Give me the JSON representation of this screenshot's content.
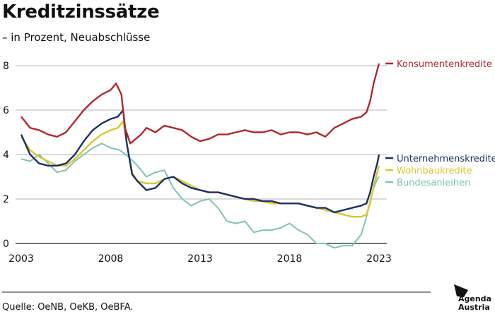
{
  "header": {
    "title": "Kreditzinssätze",
    "subtitle": "– in Prozent, Neuabschlüsse"
  },
  "footer": {
    "source": "Quelle: OeNB, OeKB, OeBFA.",
    "brand_line1": "Agenda",
    "brand_line2": "Austria"
  },
  "chart_data": {
    "type": "line",
    "title": "Kreditzinssätze",
    "subtitle": "– in Prozent, Neuabschlüsse",
    "xlabel": "",
    "ylabel": "",
    "xlim": [
      2003,
      2023.3
    ],
    "ylim": [
      0,
      8.6
    ],
    "x_ticks": [
      2003,
      2008,
      2013,
      2018,
      2023
    ],
    "y_ticks": [
      0,
      2,
      4,
      6,
      8
    ],
    "grid": "horizontal",
    "legend": "right (end-of-line labels)",
    "series": [
      {
        "name": "Konsumentenkredite",
        "color": "#b0282e",
        "x": [
          2003.0,
          2003.5,
          2004.0,
          2004.5,
          2005.0,
          2005.5,
          2006.0,
          2006.5,
          2007.0,
          2007.5,
          2008.0,
          2008.3,
          2008.6,
          2008.8,
          2009.1,
          2009.4,
          2009.7,
          2010.0,
          2010.5,
          2011.0,
          2011.5,
          2012.0,
          2012.5,
          2013.0,
          2013.5,
          2014.0,
          2014.5,
          2015.0,
          2015.5,
          2016.0,
          2016.5,
          2017.0,
          2017.5,
          2018.0,
          2018.5,
          2019.0,
          2019.5,
          2020.0,
          2020.5,
          2021.0,
          2021.5,
          2022.0,
          2022.3,
          2022.5,
          2022.7,
          2022.9,
          2023.0
        ],
        "values": [
          5.7,
          5.2,
          5.1,
          4.9,
          4.8,
          5.0,
          5.5,
          6.0,
          6.4,
          6.7,
          6.9,
          7.2,
          6.7,
          5.2,
          4.5,
          4.7,
          4.9,
          5.2,
          5.0,
          5.3,
          5.2,
          5.1,
          4.8,
          4.6,
          4.7,
          4.9,
          4.9,
          5.0,
          5.1,
          5.0,
          5.0,
          5.1,
          4.9,
          5.0,
          5.0,
          4.9,
          5.0,
          4.8,
          5.2,
          5.4,
          5.6,
          5.7,
          5.9,
          6.4,
          7.2,
          7.8,
          8.1
        ]
      },
      {
        "name": "Unternehmenskredite",
        "color": "#1c2e66",
        "x": [
          2003.0,
          2003.5,
          2004.0,
          2004.5,
          2005.0,
          2005.5,
          2006.0,
          2006.5,
          2007.0,
          2007.5,
          2008.0,
          2008.4,
          2008.7,
          2008.9,
          2009.2,
          2009.5,
          2010.0,
          2010.5,
          2011.0,
          2011.5,
          2012.0,
          2012.5,
          2013.0,
          2013.5,
          2014.0,
          2014.5,
          2015.0,
          2015.5,
          2016.0,
          2016.5,
          2017.0,
          2017.5,
          2018.0,
          2018.5,
          2019.0,
          2019.5,
          2020.0,
          2020.5,
          2021.0,
          2021.5,
          2022.0,
          2022.3,
          2022.5,
          2022.7,
          2022.9,
          2023.0
        ],
        "values": [
          4.9,
          4.0,
          3.6,
          3.5,
          3.5,
          3.6,
          4.0,
          4.6,
          5.1,
          5.4,
          5.6,
          5.7,
          6.0,
          4.5,
          3.1,
          2.8,
          2.4,
          2.5,
          2.9,
          3.0,
          2.7,
          2.5,
          2.4,
          2.3,
          2.3,
          2.2,
          2.1,
          2.0,
          2.0,
          1.9,
          1.9,
          1.8,
          1.8,
          1.8,
          1.7,
          1.6,
          1.6,
          1.4,
          1.5,
          1.6,
          1.7,
          1.8,
          2.3,
          3.0,
          3.6,
          4.0
        ]
      },
      {
        "name": "Wohnbaukredite",
        "color": "#d9c62e",
        "x": [
          2003.0,
          2003.5,
          2004.0,
          2004.5,
          2005.0,
          2005.5,
          2006.0,
          2006.5,
          2007.0,
          2007.5,
          2008.0,
          2008.4,
          2008.7,
          2008.9,
          2009.2,
          2009.5,
          2010.0,
          2010.5,
          2011.0,
          2011.5,
          2012.0,
          2012.5,
          2013.0,
          2013.5,
          2014.0,
          2014.5,
          2015.0,
          2015.5,
          2016.0,
          2016.5,
          2017.0,
          2017.5,
          2018.0,
          2018.5,
          2019.0,
          2019.5,
          2020.0,
          2020.5,
          2021.0,
          2021.5,
          2022.0,
          2022.3,
          2022.5,
          2022.7,
          2022.9,
          2023.0
        ],
        "values": [
          4.8,
          4.2,
          3.9,
          3.7,
          3.5,
          3.5,
          3.8,
          4.2,
          4.6,
          4.9,
          5.1,
          5.2,
          5.5,
          4.5,
          3.2,
          2.8,
          2.7,
          2.7,
          2.9,
          3.0,
          2.8,
          2.6,
          2.4,
          2.3,
          2.3,
          2.2,
          2.1,
          2.0,
          1.9,
          1.9,
          1.8,
          1.8,
          1.8,
          1.8,
          1.7,
          1.6,
          1.5,
          1.4,
          1.3,
          1.2,
          1.2,
          1.3,
          1.8,
          2.6,
          3.2,
          3.5
        ]
      },
      {
        "name": "Bundesanleihen",
        "color": "#7ec4ae",
        "x": [
          2003.0,
          2003.5,
          2004.0,
          2004.5,
          2005.0,
          2005.5,
          2006.0,
          2006.5,
          2007.0,
          2007.5,
          2008.0,
          2008.5,
          2009.0,
          2009.5,
          2010.0,
          2010.5,
          2011.0,
          2011.5,
          2012.0,
          2012.5,
          2013.0,
          2013.5,
          2014.0,
          2014.5,
          2015.0,
          2015.5,
          2016.0,
          2016.5,
          2017.0,
          2017.5,
          2018.0,
          2018.5,
          2019.0,
          2019.5,
          2020.0,
          2020.5,
          2021.0,
          2021.5,
          2022.0,
          2022.3,
          2022.5,
          2022.7,
          2022.9,
          2023.0
        ],
        "values": [
          3.8,
          3.7,
          4.0,
          3.6,
          3.2,
          3.3,
          3.7,
          4.0,
          4.3,
          4.5,
          4.3,
          4.2,
          3.9,
          3.5,
          3.0,
          3.2,
          3.3,
          2.5,
          2.0,
          1.7,
          1.9,
          2.0,
          1.6,
          1.0,
          0.9,
          1.0,
          0.5,
          0.6,
          0.6,
          0.7,
          0.9,
          0.6,
          0.4,
          0.0,
          0.0,
          -0.2,
          -0.1,
          -0.1,
          0.4,
          1.2,
          1.9,
          2.5,
          2.9,
          3.0
        ]
      }
    ]
  }
}
